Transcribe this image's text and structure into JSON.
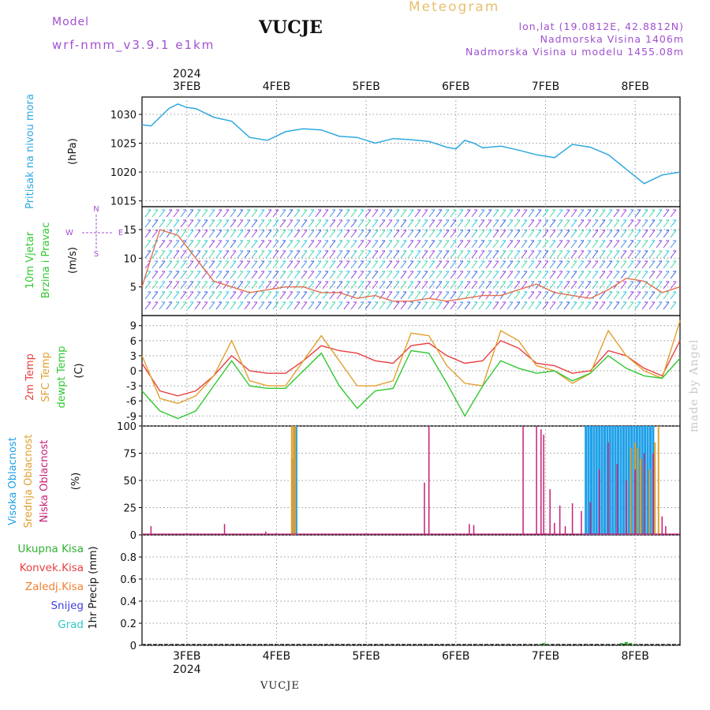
{
  "header": {
    "model_label": "Model",
    "model_name": "wrf-nmm_v3.9.1  e1km",
    "station": "VUCJE",
    "meteogram": "Meteogram",
    "info_lines": [
      "lon,lat (19.0812E, 42.8812N)",
      "Nadmorska Visina 1406m",
      "Nadmorska Visina u modelu 1455.08m"
    ]
  },
  "footer": {
    "station": "VUCJE",
    "watermark": "made by Angel"
  },
  "time_axis": {
    "year": "2024",
    "day_labels": [
      "3FEB",
      "4FEB",
      "5FEB",
      "6FEB",
      "7FEB",
      "8FEB"
    ],
    "day_positions": [
      2.5,
      3.5,
      4.5,
      5.5,
      6.5,
      7.5
    ],
    "start": 2.0,
    "end": 8.0
  },
  "colors": {
    "pressure": "#2ea8e0",
    "t2m": "#e84040",
    "sfc": "#e0a030",
    "dewpt": "#30c830",
    "high_cloud": "#1ea0e8",
    "mid_cloud": "#e0a030",
    "low_cloud": "#c8207a",
    "precip_total": "#30b030",
    "precip_conv": "#e84040",
    "precip_frz": "#f08030",
    "precip_snow": "#4040e0",
    "precip_grad": "#30c8c8",
    "wind_speed": "#e07050"
  },
  "panels": {
    "pressure": {
      "label": "Pritisak na nivou mora",
      "unit": "(hPa)",
      "ticks": [
        "1015",
        "1020",
        "1025",
        "1030"
      ]
    },
    "wind": {
      "label_line1": "10m Vjetar",
      "label_line2": "Brzina i Pravac",
      "unit": "(m/s)",
      "ticks": [
        "5",
        "10",
        "15"
      ],
      "compass": {
        "north": "N",
        "west": "W",
        "east": "E",
        "south": "S"
      }
    },
    "temp": {
      "label_t2m": "2m Temp",
      "label_sfc": "SFC Temp",
      "label_dewpt": "dewpt Temp",
      "unit": "(C)",
      "ticks": [
        "-9",
        "-6",
        "-3",
        "0",
        "3",
        "6",
        "9"
      ]
    },
    "cloud": {
      "label_high": "Visoka Oblacnost",
      "label_mid": "Srednja Oblacnost",
      "label_low": "Niska Oblacnost",
      "unit": "(%)",
      "ticks": [
        "0",
        "25",
        "50",
        "75",
        "100"
      ]
    },
    "precip": {
      "unit_label": "1hr Precip (mm)",
      "ticks": [
        "0",
        "0.2",
        "0.4",
        "0.6",
        "0.8"
      ],
      "legend": [
        "Ukupna Kisa",
        "Konvek.Kisa",
        "Zaledj.Kisa",
        "Snijeg",
        "Grad"
      ]
    }
  },
  "chart_data": [
    {
      "type": "line",
      "title": "",
      "ylabel": "Pritisak na nivou mora (hPa)",
      "ylim": [
        1014,
        1033
      ],
      "series": [
        {
          "name": "Pritisak na nivou mora",
          "x": [
            2.0,
            2.1,
            2.2,
            2.3,
            2.4,
            2.5,
            2.6,
            2.8,
            3.0,
            3.2,
            3.4,
            3.6,
            3.8,
            4.0,
            4.2,
            4.4,
            4.6,
            4.8,
            5.0,
            5.2,
            5.4,
            5.5,
            5.6,
            5.7,
            5.8,
            6.0,
            6.2,
            6.4,
            6.6,
            6.8,
            7.0,
            7.2,
            7.4,
            7.6,
            7.8,
            8.0
          ],
          "values": [
            1028.2,
            1028.0,
            1029.5,
            1031.0,
            1031.8,
            1031.2,
            1031.0,
            1029.5,
            1028.8,
            1026.0,
            1025.5,
            1027.0,
            1027.5,
            1027.3,
            1026.2,
            1026.0,
            1025.0,
            1025.8,
            1025.6,
            1025.3,
            1024.3,
            1024.0,
            1025.5,
            1025.0,
            1024.2,
            1024.5,
            1023.8,
            1023.0,
            1022.5,
            1024.8,
            1024.3,
            1023.0,
            1020.5,
            1018.0,
            1019.5,
            1020.0
          ]
        }
      ]
    },
    {
      "type": "line",
      "title": "",
      "ylabel": "10m Vjetar Brzina i Pravac (m/s)",
      "ylim": [
        0,
        19
      ],
      "series": [
        {
          "name": "10m Vjetar",
          "x": [
            2.0,
            2.2,
            2.4,
            2.6,
            2.8,
            3.0,
            3.2,
            3.4,
            3.6,
            3.8,
            4.0,
            4.2,
            4.4,
            4.6,
            4.8,
            5.0,
            5.2,
            5.4,
            5.6,
            5.8,
            6.0,
            6.2,
            6.4,
            6.6,
            6.8,
            7.0,
            7.2,
            7.4,
            7.6,
            7.8,
            8.0
          ],
          "values": [
            5.0,
            15.0,
            14.0,
            10.0,
            6.0,
            5.0,
            4.0,
            4.5,
            5.0,
            5.0,
            4.0,
            4.0,
            3.0,
            3.5,
            2.5,
            2.5,
            3.0,
            2.5,
            3.0,
            3.5,
            3.5,
            4.5,
            5.5,
            4.0,
            3.5,
            3.0,
            4.5,
            6.5,
            6.0,
            4.0,
            5.0
          ]
        }
      ]
    },
    {
      "type": "line",
      "title": "",
      "ylabel": "(C)",
      "ylim": [
        -11,
        11
      ],
      "x": [
        2.0,
        2.2,
        2.4,
        2.6,
        2.8,
        3.0,
        3.2,
        3.4,
        3.6,
        3.8,
        4.0,
        4.2,
        4.4,
        4.6,
        4.8,
        5.0,
        5.2,
        5.4,
        5.6,
        5.8,
        6.0,
        6.2,
        6.4,
        6.6,
        6.8,
        7.0,
        7.2,
        7.4,
        7.6,
        7.8,
        8.0
      ],
      "series": [
        {
          "name": "2m Temp",
          "values": [
            1.5,
            -4.0,
            -5.0,
            -4.0,
            -1.0,
            3.0,
            0.0,
            -0.5,
            -0.5,
            2.0,
            5.0,
            4.0,
            3.5,
            2.0,
            1.5,
            5.0,
            5.5,
            3.0,
            1.5,
            2.0,
            6.0,
            4.5,
            1.5,
            1.0,
            -0.5,
            0.0,
            4.0,
            3.0,
            0.5,
            -1.0,
            6.0
          ]
        },
        {
          "name": "SFC Temp",
          "values": [
            3.0,
            -5.5,
            -6.5,
            -5.0,
            -1.0,
            6.0,
            -2.0,
            -3.0,
            -3.0,
            2.0,
            7.0,
            2.0,
            -3.0,
            -3.0,
            -2.0,
            7.5,
            7.0,
            1.0,
            -2.5,
            -3.0,
            8.0,
            6.0,
            1.0,
            0.0,
            -2.5,
            -0.5,
            8.0,
            3.0,
            0.0,
            -1.5,
            10.0
          ]
        },
        {
          "name": "dewpt Temp",
          "values": [
            -4.0,
            -8.0,
            -9.5,
            -8.0,
            -3.0,
            2.0,
            -3.0,
            -3.5,
            -3.5,
            0.0,
            3.5,
            -3.0,
            -7.5,
            -4.0,
            -3.5,
            4.0,
            3.5,
            -2.5,
            -9.0,
            -3.0,
            2.0,
            0.5,
            -0.5,
            0.0,
            -2.0,
            -0.5,
            3.0,
            0.5,
            -1.0,
            -1.5,
            2.5
          ]
        }
      ]
    },
    {
      "type": "bar",
      "title": "",
      "ylabel": "(%)",
      "ylim": [
        0,
        100
      ],
      "series": [
        {
          "name": "Visoka Oblacnost",
          "x": [
            3.68,
            3.7,
            3.72,
            6.95,
            6.98,
            7.01,
            7.04,
            7.07,
            7.1,
            7.13,
            7.16,
            7.19,
            7.22,
            7.25,
            7.28,
            7.31,
            7.34,
            7.37,
            7.4,
            7.43,
            7.46,
            7.49,
            7.52,
            7.55,
            7.58,
            7.61,
            7.64,
            7.67,
            7.7
          ],
          "values": [
            70,
            100,
            100,
            100,
            100,
            100,
            100,
            100,
            100,
            100,
            100,
            100,
            100,
            100,
            100,
            100,
            100,
            100,
            100,
            100,
            100,
            100,
            100,
            100,
            100,
            100,
            100,
            100,
            100
          ]
        },
        {
          "name": "Srednja Oblacnost",
          "x": [
            3.67,
            3.69,
            3.71,
            7.45,
            7.5,
            7.53,
            7.56,
            7.6,
            7.66,
            7.72,
            7.76
          ],
          "values": [
            100,
            100,
            100,
            80,
            85,
            80,
            70,
            65,
            60,
            85,
            100
          ]
        },
        {
          "name": "Niska Oblacnost",
          "x": [
            2.1,
            2.92,
            3.38,
            5.15,
            5.2,
            5.65,
            5.7,
            6.25,
            6.4,
            6.45,
            6.48,
            6.55,
            6.6,
            6.66,
            6.72,
            6.8,
            6.9,
            7.0,
            7.1,
            7.2,
            7.3,
            7.4,
            7.5,
            7.6,
            7.7,
            7.8,
            7.84
          ],
          "values": [
            8,
            10,
            3,
            48,
            100,
            10,
            9,
            100,
            100,
            97,
            92,
            42,
            11,
            27,
            8,
            29,
            22,
            30,
            60,
            85,
            65,
            50,
            60,
            75,
            75,
            17,
            8
          ]
        }
      ]
    },
    {
      "type": "bar",
      "title": "",
      "ylabel": "1hr Precip (mm)",
      "ylim": [
        0,
        1.0
      ],
      "series": [
        {
          "name": "Ukupna Kisa",
          "x": [
            6.45,
            6.48,
            6.52,
            7.35,
            7.4,
            7.45,
            7.5
          ],
          "values": [
            0.01,
            0.02,
            0.01,
            0.02,
            0.03,
            0.02,
            0.01
          ]
        }
      ]
    }
  ]
}
